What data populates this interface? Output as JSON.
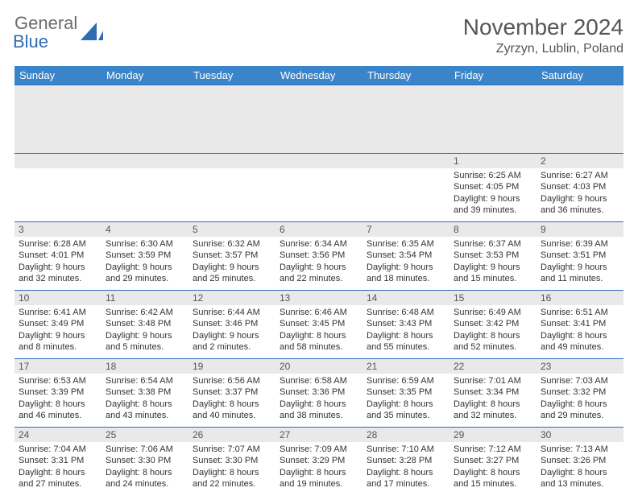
{
  "logo": {
    "text_gray": "General",
    "text_blue": "Blue"
  },
  "title": "November 2024",
  "location": "Zyrzyn, Lublin, Poland",
  "colors": {
    "header_bg": "#3a85c9",
    "border": "#2f6db3",
    "daynum_bg": "#e9e9e9",
    "text": "#333333",
    "title_text": "#555555"
  },
  "weekdays": [
    "Sunday",
    "Monday",
    "Tuesday",
    "Wednesday",
    "Thursday",
    "Friday",
    "Saturday"
  ],
  "weeks": [
    [
      null,
      null,
      null,
      null,
      null,
      {
        "n": "1",
        "sr": "6:25 AM",
        "ss": "4:05 PM",
        "dl": "9 hours and 39 minutes."
      },
      {
        "n": "2",
        "sr": "6:27 AM",
        "ss": "4:03 PM",
        "dl": "9 hours and 36 minutes."
      }
    ],
    [
      {
        "n": "3",
        "sr": "6:28 AM",
        "ss": "4:01 PM",
        "dl": "9 hours and 32 minutes."
      },
      {
        "n": "4",
        "sr": "6:30 AM",
        "ss": "3:59 PM",
        "dl": "9 hours and 29 minutes."
      },
      {
        "n": "5",
        "sr": "6:32 AM",
        "ss": "3:57 PM",
        "dl": "9 hours and 25 minutes."
      },
      {
        "n": "6",
        "sr": "6:34 AM",
        "ss": "3:56 PM",
        "dl": "9 hours and 22 minutes."
      },
      {
        "n": "7",
        "sr": "6:35 AM",
        "ss": "3:54 PM",
        "dl": "9 hours and 18 minutes."
      },
      {
        "n": "8",
        "sr": "6:37 AM",
        "ss": "3:53 PM",
        "dl": "9 hours and 15 minutes."
      },
      {
        "n": "9",
        "sr": "6:39 AM",
        "ss": "3:51 PM",
        "dl": "9 hours and 11 minutes."
      }
    ],
    [
      {
        "n": "10",
        "sr": "6:41 AM",
        "ss": "3:49 PM",
        "dl": "9 hours and 8 minutes."
      },
      {
        "n": "11",
        "sr": "6:42 AM",
        "ss": "3:48 PM",
        "dl": "9 hours and 5 minutes."
      },
      {
        "n": "12",
        "sr": "6:44 AM",
        "ss": "3:46 PM",
        "dl": "9 hours and 2 minutes."
      },
      {
        "n": "13",
        "sr": "6:46 AM",
        "ss": "3:45 PM",
        "dl": "8 hours and 58 minutes."
      },
      {
        "n": "14",
        "sr": "6:48 AM",
        "ss": "3:43 PM",
        "dl": "8 hours and 55 minutes."
      },
      {
        "n": "15",
        "sr": "6:49 AM",
        "ss": "3:42 PM",
        "dl": "8 hours and 52 minutes."
      },
      {
        "n": "16",
        "sr": "6:51 AM",
        "ss": "3:41 PM",
        "dl": "8 hours and 49 minutes."
      }
    ],
    [
      {
        "n": "17",
        "sr": "6:53 AM",
        "ss": "3:39 PM",
        "dl": "8 hours and 46 minutes."
      },
      {
        "n": "18",
        "sr": "6:54 AM",
        "ss": "3:38 PM",
        "dl": "8 hours and 43 minutes."
      },
      {
        "n": "19",
        "sr": "6:56 AM",
        "ss": "3:37 PM",
        "dl": "8 hours and 40 minutes."
      },
      {
        "n": "20",
        "sr": "6:58 AM",
        "ss": "3:36 PM",
        "dl": "8 hours and 38 minutes."
      },
      {
        "n": "21",
        "sr": "6:59 AM",
        "ss": "3:35 PM",
        "dl": "8 hours and 35 minutes."
      },
      {
        "n": "22",
        "sr": "7:01 AM",
        "ss": "3:34 PM",
        "dl": "8 hours and 32 minutes."
      },
      {
        "n": "23",
        "sr": "7:03 AM",
        "ss": "3:32 PM",
        "dl": "8 hours and 29 minutes."
      }
    ],
    [
      {
        "n": "24",
        "sr": "7:04 AM",
        "ss": "3:31 PM",
        "dl": "8 hours and 27 minutes."
      },
      {
        "n": "25",
        "sr": "7:06 AM",
        "ss": "3:30 PM",
        "dl": "8 hours and 24 minutes."
      },
      {
        "n": "26",
        "sr": "7:07 AM",
        "ss": "3:30 PM",
        "dl": "8 hours and 22 minutes."
      },
      {
        "n": "27",
        "sr": "7:09 AM",
        "ss": "3:29 PM",
        "dl": "8 hours and 19 minutes."
      },
      {
        "n": "28",
        "sr": "7:10 AM",
        "ss": "3:28 PM",
        "dl": "8 hours and 17 minutes."
      },
      {
        "n": "29",
        "sr": "7:12 AM",
        "ss": "3:27 PM",
        "dl": "8 hours and 15 minutes."
      },
      {
        "n": "30",
        "sr": "7:13 AM",
        "ss": "3:26 PM",
        "dl": "8 hours and 13 minutes."
      }
    ]
  ],
  "labels": {
    "sunrise": "Sunrise:",
    "sunset": "Sunset:",
    "daylight": "Daylight:"
  }
}
